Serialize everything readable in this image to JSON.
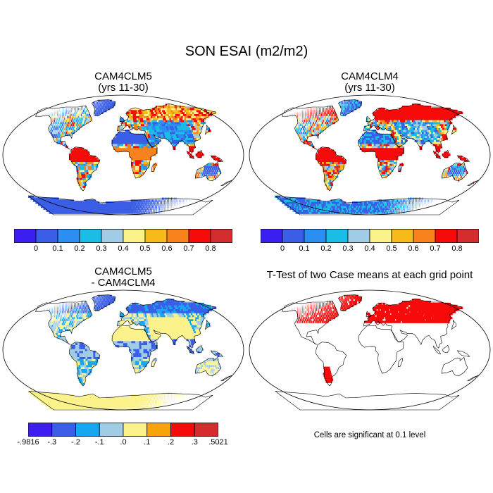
{
  "figure": {
    "title": "SON ESAI (m2/m2)",
    "panels": [
      {
        "id": "clm5",
        "title_line1": "CAM4CLM5",
        "title_line2": "(yrs 11-30)",
        "fill": "abs"
      },
      {
        "id": "clm4",
        "title_line1": "CAM4CLM4",
        "title_line2": "(yrs 11-30)",
        "fill": "abs"
      },
      {
        "id": "diff",
        "title_line1": "CAM4CLM5",
        "title_line2": "- CAM4CLM4",
        "fill": "diff"
      },
      {
        "id": "ttest",
        "title_line1": "T-Test of two Case means at each grid point",
        "title_line2": "",
        "fill": "ttest"
      }
    ],
    "footnote": "Cells are significant at 0.1 level"
  },
  "colorbar_abs": {
    "colors": [
      "#3c1ef2",
      "#3a5fe6",
      "#2b8ef0",
      "#19bde6",
      "#a0cce6",
      "#fcf28c",
      "#f7bb19",
      "#f7821e",
      "#f70a0a",
      "#d32d2d"
    ],
    "labels": [
      "0",
      "0.1",
      "0.2",
      "0.3",
      "0.4",
      "0.5",
      "0.6",
      "0.7",
      "0.8"
    ]
  },
  "colorbar_diff": {
    "colors": [
      "#3c1ef2",
      "#3a5fe6",
      "#19a6f0",
      "#a0cce6",
      "#fcf28c",
      "#f7a30a",
      "#f70a0a",
      "#d32d2d"
    ],
    "labels": [
      "-.9816",
      "-.3",
      "-.2",
      "-.1",
      ".0",
      ".1",
      ".2",
      ".3",
      ".5021"
    ]
  },
  "colors": {
    "background": "#ffffff",
    "ocean": "#ffffff",
    "coast": "#000000",
    "significant": "#f70a0a"
  }
}
